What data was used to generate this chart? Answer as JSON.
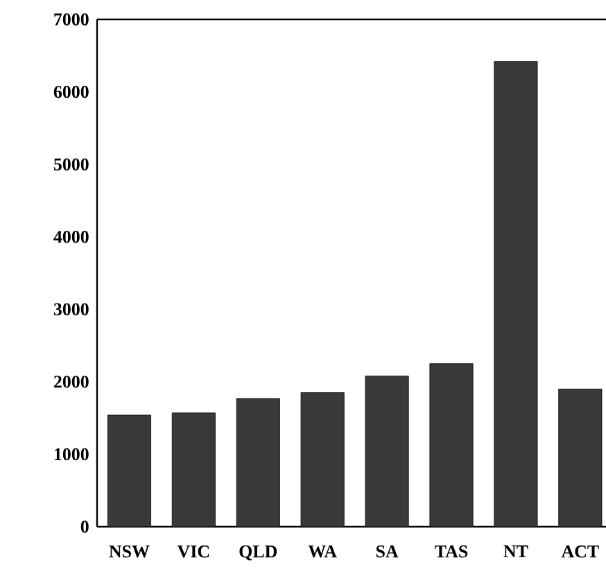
{
  "chart_data": {
    "type": "bar",
    "categories": [
      "NSW",
      "VIC",
      "QLD",
      "WA",
      "SA",
      "TAS",
      "NT",
      "ACT"
    ],
    "values": [
      1540,
      1570,
      1770,
      1850,
      2080,
      2250,
      6420,
      1900
    ],
    "color": "#3a3a3a",
    "ylim": [
      0,
      7000
    ],
    "yticks": [
      0,
      1000,
      2000,
      3000,
      4000,
      5000,
      6000,
      7000
    ]
  }
}
